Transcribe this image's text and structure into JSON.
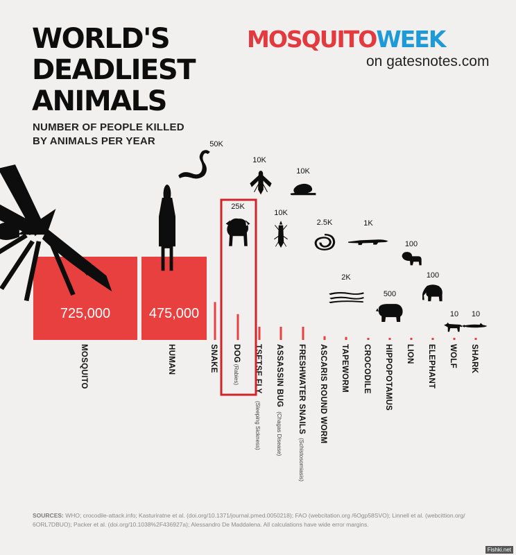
{
  "header": {
    "title_lines": [
      "WORLD'S",
      "DEADLIEST",
      "ANIMALS"
    ],
    "subtitle_lines": [
      "NUMBER OF PEOPLE KILLED",
      "BY ANIMALS PER YEAR"
    ],
    "brand_part1": "MOSQUITO",
    "brand_part2": "WEEK",
    "brand_sub": "on gatesnotes.com"
  },
  "colors": {
    "bar": "#e8403e",
    "highlight_box": "#d2232a",
    "brand_red": "#e23a3e",
    "brand_blue": "#1e9ad6",
    "background": "#f1f0ef"
  },
  "chart_data": {
    "type": "bar",
    "title": "NUMBER OF PEOPLE KILLED BY ANIMALS PER YEAR",
    "categories": [
      "MOSQUITO",
      "HUMAN",
      "SNAKE",
      "DOG",
      "TSETSE FLY",
      "ASSASSIN BUG",
      "FRESHWATER SNAILS",
      "ASCARIS ROUND WORM",
      "TAPEWORM",
      "CROCODILE",
      "HIPPOPOTAMUS",
      "LION",
      "ELEPHANT",
      "WOLF",
      "SHARK"
    ],
    "notes": [
      "",
      "",
      "",
      "(Rabies)",
      "(Sleeping Sickness)",
      "(Chagas Disease)",
      "(Schistosomiasis)",
      "",
      "",
      "",
      "",
      "",
      "",
      "",
      ""
    ],
    "values": [
      725000,
      475000,
      50000,
      25000,
      10000,
      10000,
      10000,
      2500,
      2000,
      1000,
      500,
      100,
      100,
      10,
      10
    ],
    "value_labels": [
      "725,000",
      "475,000",
      "50K",
      "25K",
      "10K",
      "10K",
      "10K",
      "2.5K",
      "2K",
      "1K",
      "500",
      "100",
      "100",
      "10",
      "10"
    ],
    "highlighted": "DOG",
    "icons": [
      "mosquito-icon",
      "human-icon",
      "snake-icon",
      "dog-icon",
      "tsetse-fly-icon",
      "assassin-bug-icon",
      "snail-icon",
      "roundworm-icon",
      "tapeworm-icon",
      "crocodile-icon",
      "hippo-icon",
      "lion-icon",
      "elephant-icon",
      "wolf-icon",
      "shark-icon"
    ]
  },
  "footer": {
    "sources_label": "SOURCES:",
    "sources_text": " WHO; crocodile-attack.info; Kasturiratne et al. (doi.org/10.1371/journal.pmed.0050218); FAO (webcitation.org /6Ogp58SVO); Linnell et al. (webcittion.org/ 6ORL7DBUO); Packer et al. (doi.org/10.1038%2F436927a); Alessandro De Maddalena.  All calculations have wide error margins.",
    "corner_tag": "Fishki.net"
  }
}
